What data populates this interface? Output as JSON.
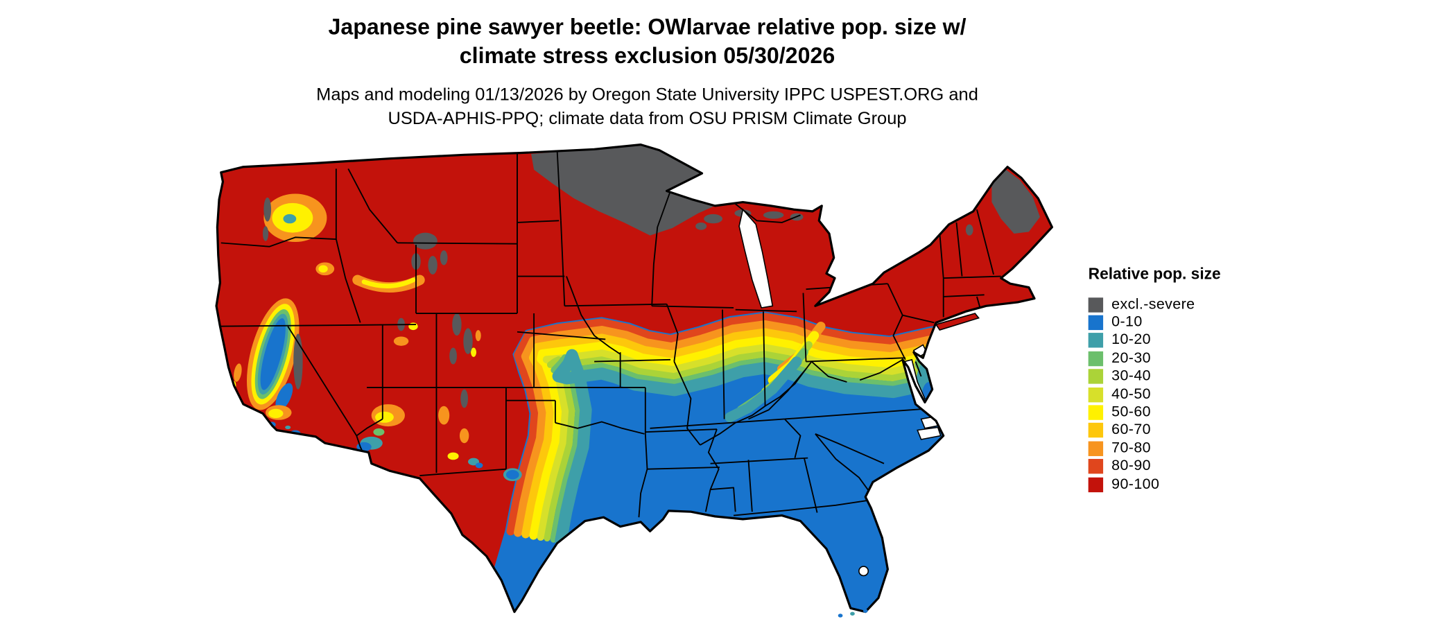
{
  "header": {
    "title_line1": "Japanese pine sawyer beetle: OWlarvae relative pop. size w/",
    "title_line2": "climate stress exclusion 05/30/2026",
    "subtitle_line1": "Maps and modeling 01/13/2026 by Oregon State University IPPC USPEST.ORG and",
    "subtitle_line2": "USDA-APHIS-PPQ; climate data from OSU PRISM Climate Group"
  },
  "map": {
    "kind": "choropleth raster map",
    "region": "contiguous United States"
  },
  "legend": {
    "title": "Relative pop. size",
    "entries": [
      {
        "label": "excl.-severe",
        "color": "#58595b"
      },
      {
        "label": "0-10",
        "color": "#1874cd"
      },
      {
        "label": "10-20",
        "color": "#3e9fa9"
      },
      {
        "label": "20-30",
        "color": "#6cbf6c"
      },
      {
        "label": "30-40",
        "color": "#abd338"
      },
      {
        "label": "40-50",
        "color": "#d7e02a"
      },
      {
        "label": "50-60",
        "color": "#fff100"
      },
      {
        "label": "60-70",
        "color": "#fdc70c"
      },
      {
        "label": "70-80",
        "color": "#f7941e"
      },
      {
        "label": "80-90",
        "color": "#e0461d"
      },
      {
        "label": "90-100",
        "color": "#c3120b"
      }
    ]
  }
}
